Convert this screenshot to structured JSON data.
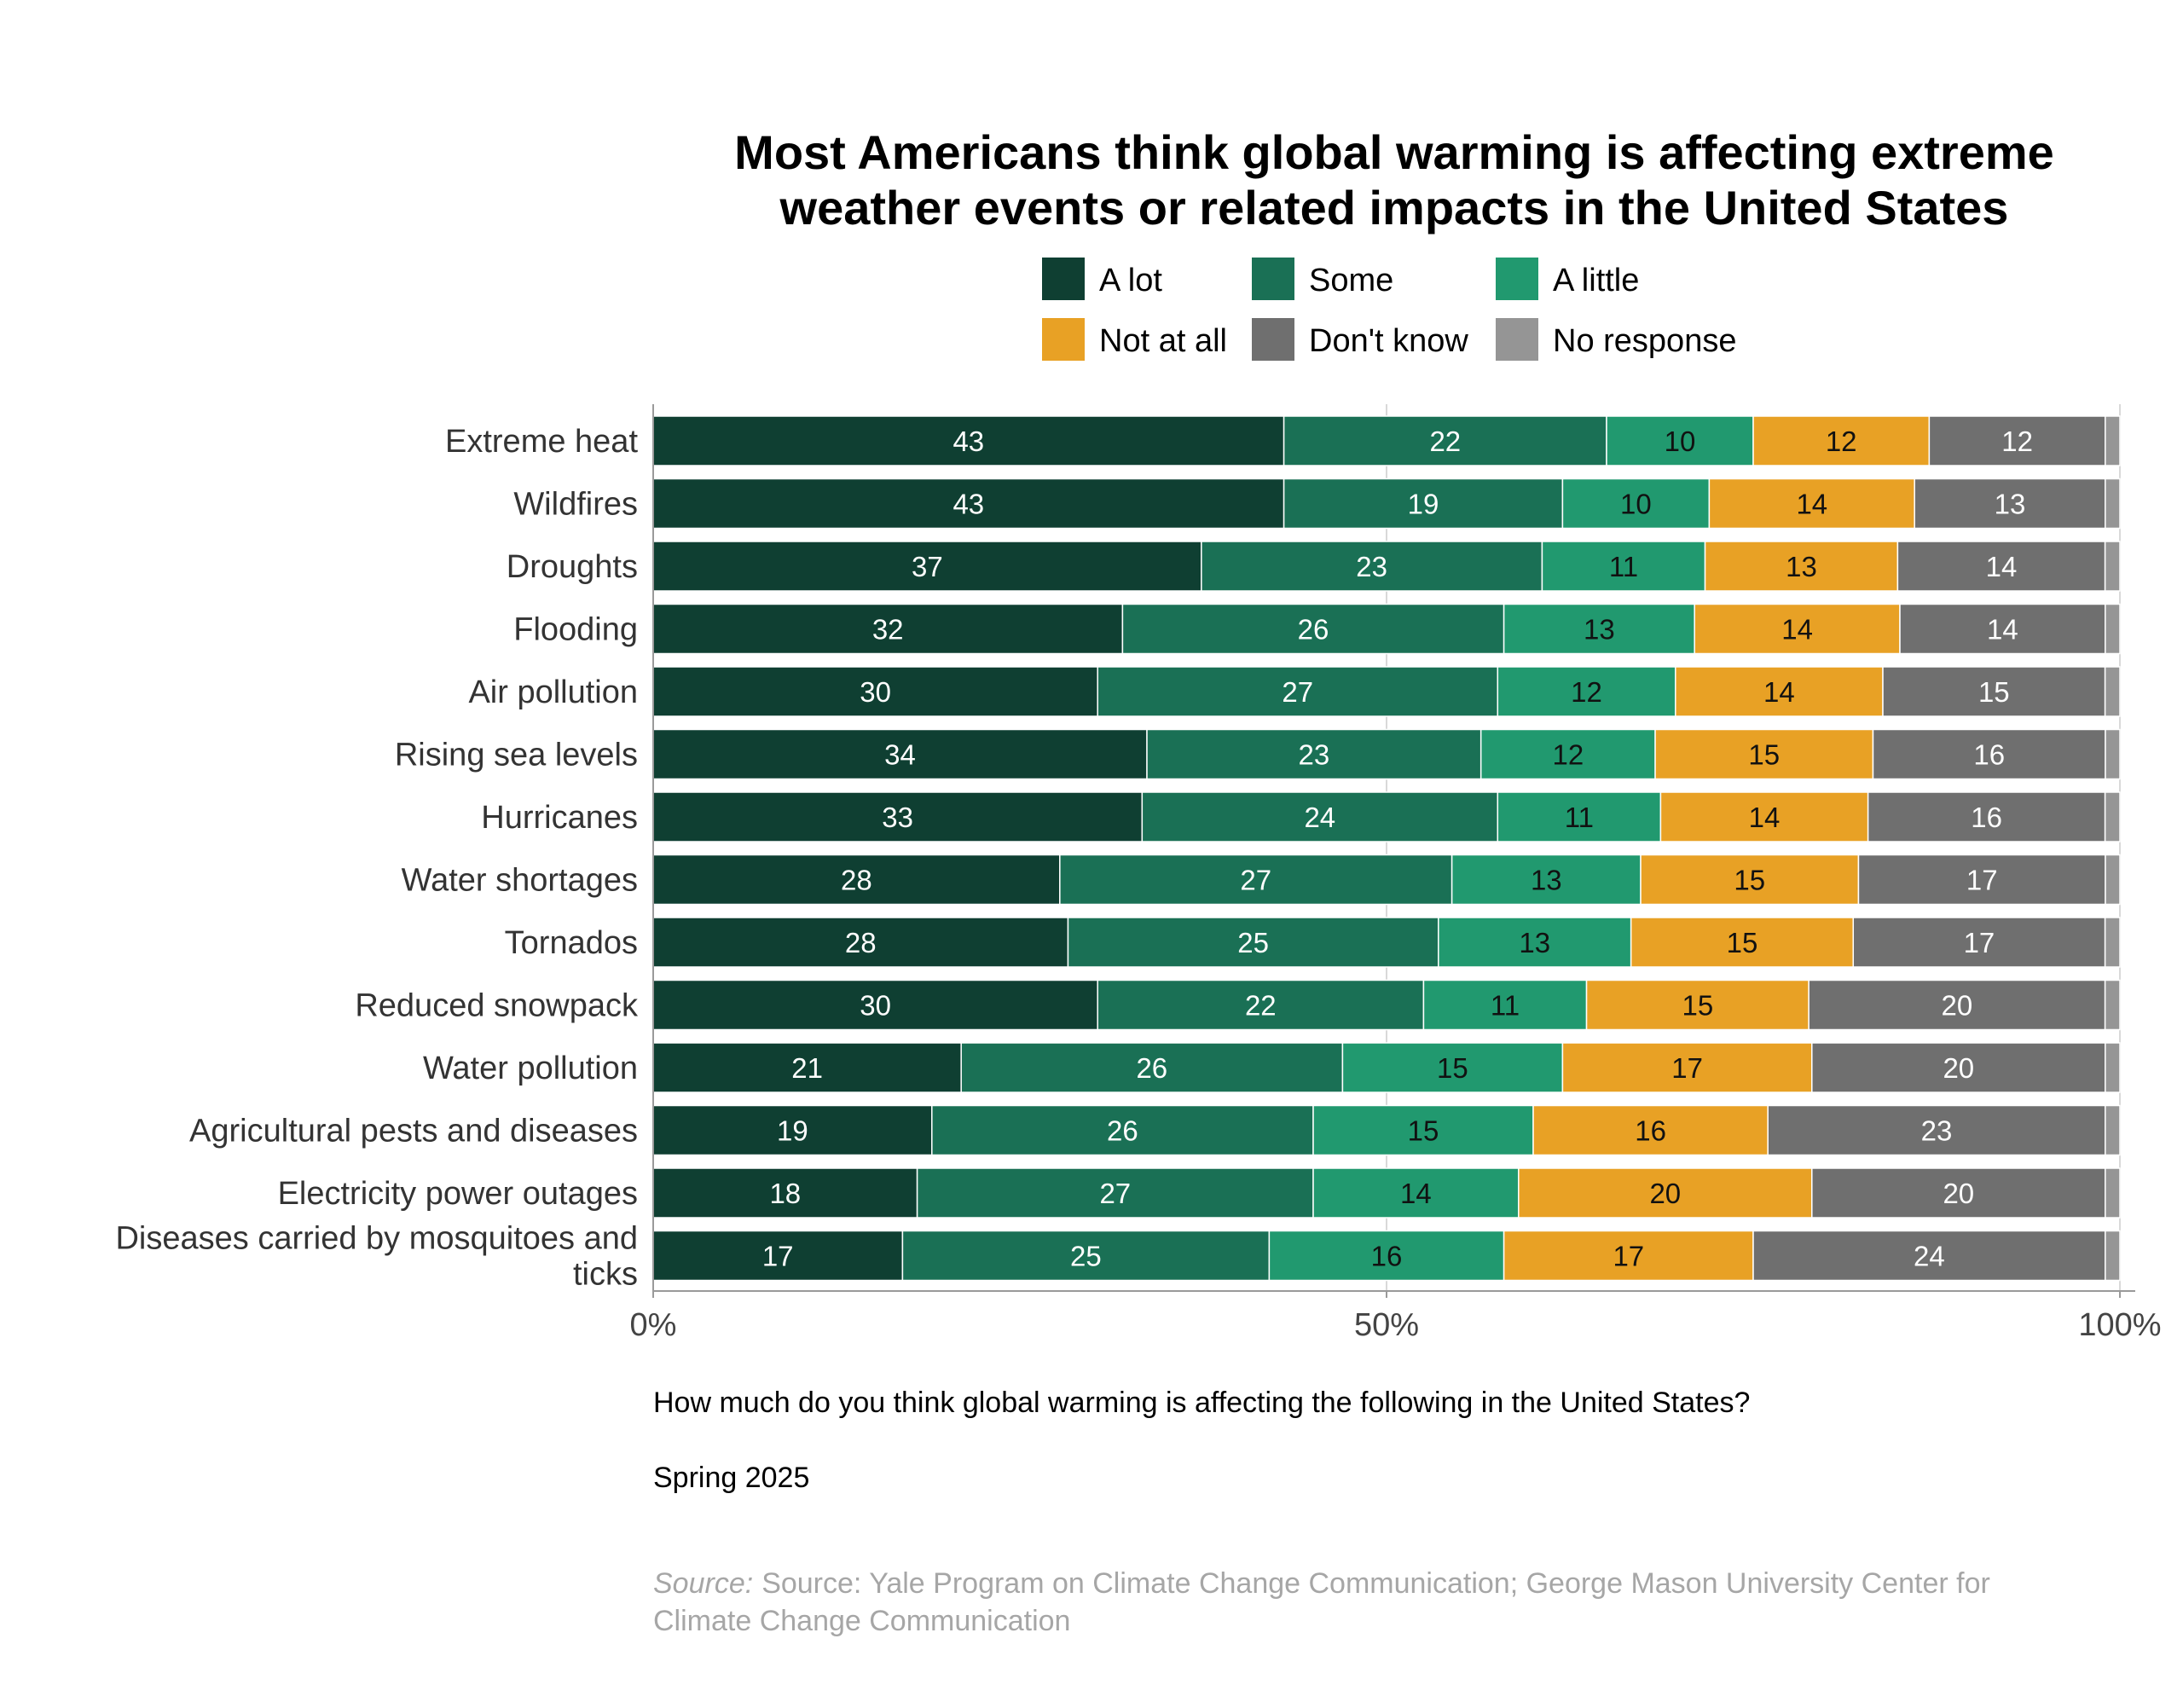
{
  "chart_data": {
    "type": "bar",
    "orientation": "horizontal",
    "stacked": true,
    "title_lines": [
      "Most Americans think global warming is affecting extreme",
      "weather events or related impacts in the United States"
    ],
    "categories": [
      "Extreme heat",
      "Wildfires",
      "Droughts",
      "Flooding",
      "Air pollution",
      "Rising sea levels",
      "Hurricanes",
      "Water shortages",
      "Tornados",
      "Reduced snowpack",
      "Water pollution",
      "Agricultural pests and diseases",
      "Electricity power outages",
      "Diseases carried by mosquitoes and ticks"
    ],
    "series": [
      {
        "name": "A lot",
        "color": "#0f3f32",
        "label_color": "#ffffff",
        "values": [
          43,
          43,
          37,
          32,
          30,
          34,
          33,
          28,
          28,
          30,
          21,
          19,
          18,
          17
        ]
      },
      {
        "name": "Some",
        "color": "#1a7055",
        "label_color": "#ffffff",
        "values": [
          22,
          19,
          23,
          26,
          27,
          23,
          24,
          27,
          25,
          22,
          26,
          26,
          27,
          25
        ]
      },
      {
        "name": "A little",
        "color": "#21996f",
        "label_color": "#111111",
        "values": [
          10,
          10,
          11,
          13,
          12,
          12,
          11,
          13,
          13,
          11,
          15,
          15,
          14,
          16
        ]
      },
      {
        "name": "Not at all",
        "color": "#e8a125",
        "label_color": "#111111",
        "values": [
          12,
          14,
          13,
          14,
          14,
          15,
          14,
          15,
          15,
          15,
          17,
          16,
          20,
          17
        ]
      },
      {
        "name": "Don't know",
        "color": "#6f6f6f",
        "label_color": "#ffffff",
        "values": [
          12,
          13,
          14,
          14,
          15,
          16,
          16,
          17,
          17,
          20,
          20,
          23,
          20,
          24
        ]
      },
      {
        "name": "No response",
        "color": "#959595",
        "label_color": "#111111",
        "values": [
          1,
          1,
          1,
          1,
          1,
          1,
          1,
          1,
          1,
          1,
          1,
          1,
          1,
          1
        ],
        "show_labels": false
      }
    ],
    "xlim": [
      0,
      100
    ],
    "x_ticks": [
      0,
      50,
      100
    ],
    "x_tick_labels": [
      "0%",
      "50%",
      "100%"
    ],
    "grid": true,
    "legend_position": "top",
    "note": "How much do you think global warming is affecting the following in the United States?",
    "date_label": "Spring 2025",
    "source_prefix": "Source:",
    "source_lines": [
      "Source: Yale Program on Climate Change Communication; George Mason University Center for",
      "Climate Change Communication"
    ]
  }
}
